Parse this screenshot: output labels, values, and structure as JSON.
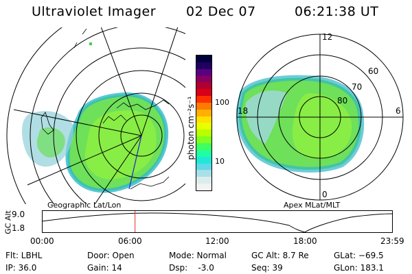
{
  "header": {
    "instrument": "Ultraviolet Imager",
    "date": "02 Dec 07",
    "time": "06:21:38 UT"
  },
  "left_panel": {
    "label": "Geographic Lat/Lon"
  },
  "right_panel": {
    "label": "Apex MLat/MLT",
    "mlt_labels": [
      "12",
      "18",
      "6",
      "0"
    ],
    "mlat_labels": [
      "60",
      "70",
      "80"
    ]
  },
  "colorbar": {
    "unit_label": "photon cm⁻²s⁻¹",
    "tick_labels": [
      "100",
      "10"
    ],
    "colors": [
      "#000040",
      "#200060",
      "#5a0080",
      "#8a0060",
      "#b00030",
      "#d80018",
      "#ff3000",
      "#ff7a00",
      "#ffb000",
      "#ffe000",
      "#e8ff00",
      "#b8ff00",
      "#80ff20",
      "#40ff60",
      "#20ffa0",
      "#20e8d8",
      "#60d8e8",
      "#a8e0e8",
      "#dcecec",
      "#f2f2f2"
    ]
  },
  "altitude_plot": {
    "ylabel": "GC Alt",
    "y_ticks": [
      "9.0",
      "1.8"
    ],
    "x_ticks": [
      "00:00",
      "06:00",
      "12:00",
      "18:00",
      "23:59"
    ],
    "current_time_hours": 6.36,
    "marker_color": "#e0301e"
  },
  "status": {
    "filter": "Flt: LBHL",
    "ip": "IP: 36.0",
    "door": "Door: Open",
    "gain": "Gain: 14",
    "mode": "Mode: Normal",
    "dsp": "Dsp:    -3.0",
    "gc_alt": "GC Alt: 8.7 Re",
    "seq": "Seq: 39",
    "glat": "GLat: −69.5",
    "glon": "GLon: 183.1"
  }
}
